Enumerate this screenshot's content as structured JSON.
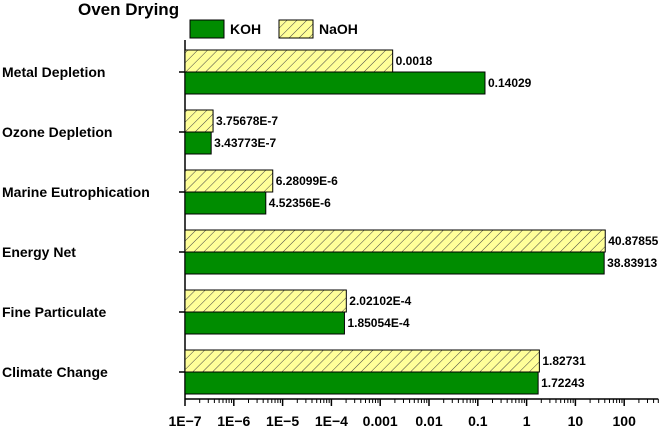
{
  "chart_data": {
    "type": "bar",
    "orientation": "horizontal",
    "title": "Oven Drying",
    "xscale": "log",
    "xlim": [
      1e-07,
      500
    ],
    "xticks": [
      1e-07,
      1e-06,
      1e-05,
      0.0001,
      0.001,
      0.01,
      0.1,
      1,
      10,
      100
    ],
    "xtick_labels": [
      "1E−7",
      "1E−6",
      "1E−5",
      "1E−4",
      "0.001",
      "0.01",
      "0.1",
      "1",
      "10",
      "100"
    ],
    "categories": [
      "Metal Depletion",
      "Ozone Depletion",
      "Marine Eutrophication",
      "Energy Net",
      "Fine Particulate",
      "Climate Change"
    ],
    "legend_position": "top-left",
    "series": [
      {
        "name": "KOH",
        "color": "#008c00",
        "pattern": "solid",
        "values": [
          0.14029,
          3.43773e-07,
          4.52356e-06,
          38.83913,
          0.000185054,
          1.72243
        ],
        "labels": [
          "0.14029",
          "3.43773E-7",
          "4.52356E-6",
          "38.83913",
          "1.85054E-4",
          "1.72243"
        ]
      },
      {
        "name": "NaOH",
        "color": "#ffff99",
        "pattern": "hatched",
        "values": [
          0.0018,
          3.75678e-07,
          6.28099e-06,
          40.87855,
          0.000202102,
          1.82731
        ],
        "labels": [
          "0.0018",
          "3.75678E-7",
          "6.28099E-6",
          "40.87855",
          "2.02102E-4",
          "1.82731"
        ]
      }
    ]
  }
}
